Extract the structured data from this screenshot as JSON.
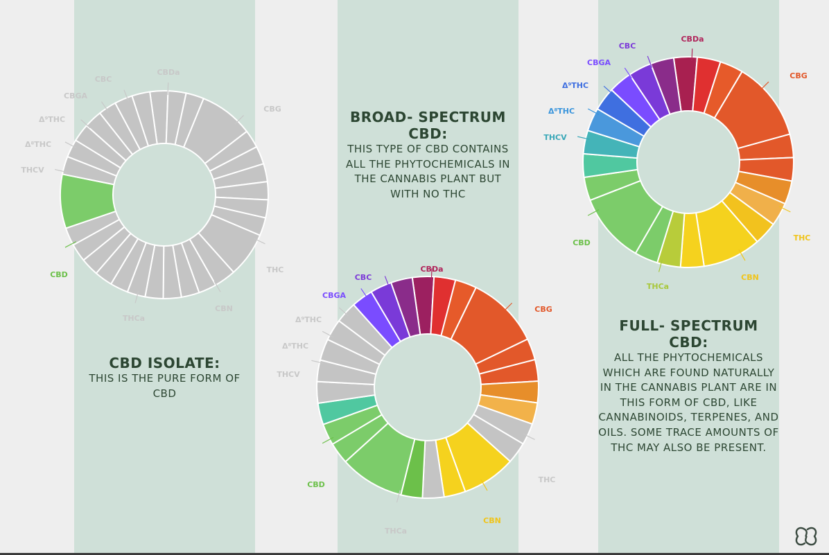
{
  "panels": [
    {
      "title": "CBD ISOLATE:",
      "description": "THIS IS THE PURE FORM OF CBD",
      "labels": {
        "CBDa": "#c8c8c8",
        "CBC": "#c8c8c8",
        "CBGA": "#c8c8c8",
        "d9THC": "#c8c8c8",
        "d8THC": "#c8c8c8",
        "THCV": "#c8c8c8",
        "CBD": "#6cc04a",
        "THCa": "#c8c8c8",
        "CBN": "#c8c8c8",
        "THC": "#c8c8c8",
        "CBG": "#c8c8c8"
      }
    },
    {
      "title": "BROAD- SPECTRUM CBD:",
      "description": "THIS TYPE OF CBD CONTAINS ALL THE PHYTOCHEMICALS IN THE CANNABIS PLANT BUT WITH NO THC",
      "labels": {
        "CBDa": "#b0245a",
        "CBC": "#7c3ad8",
        "CBGA": "#7a4cff",
        "d9THC": "#c8c8c8",
        "d8THC": "#c8c8c8",
        "THCV": "#c8c8c8",
        "CBD": "#6cc04a",
        "THCa": "#c8c8c8",
        "CBN": "#f0c41a",
        "THC": "#c8c8c8",
        "CBG": "#e2582a"
      }
    },
    {
      "title": "FULL- SPECTRUM CBD:",
      "description": "ALL THE PHYTOCHEMICALS WHICH ARE FOUND NATURALLY IN THE CANNABIS PLANT ARE IN THIS FORM OF CBD, LIKE CANNABINOIDS, TERPENES, AND OILS. SOME TRACE AMOUNTS OF THC MAY ALSO BE PRESENT.",
      "labels": {
        "CBDa": "#b0245a",
        "CBC": "#7c3ad8",
        "CBGA": "#7a4cff",
        "d9THC": "#3f6fe0",
        "d8THC": "#3a95dc",
        "THCV": "#3aa8b8",
        "CBD": "#6cc04a",
        "THCa": "#a8c83a",
        "CBN": "#f0c41a",
        "THC": "#f0c41a",
        "CBG": "#e2582a"
      }
    }
  ],
  "label_text": {
    "CBDa": "CBDa",
    "CBC": "CBC",
    "CBGA": "CBGA",
    "d9THC": "Δ⁹THC",
    "d8THC": "Δ⁸THC",
    "THCV": "THCV",
    "CBD": "CBD",
    "THCa": "THCa",
    "CBN": "CBN",
    "THC": "THC",
    "CBG": "CBG"
  },
  "segment_colors": [
    [
      "#c4c4c4",
      "#c4c4c4",
      "#c4c4c4",
      "#c4c4c4",
      "#c4c4c4",
      "#c4c4c4",
      "#c4c4c4",
      "#c4c4c4",
      "#c4c4c4",
      "#c4c4c4",
      "#c4c4c4",
      "#c4c4c4",
      "#c4c4c4",
      "#c4c4c4",
      "#c4c4c4",
      "#c4c4c4",
      "#c4c4c4",
      "#c4c4c4",
      "#c4c4c4",
      "#c4c4c4",
      "#c4c4c4",
      "#c4c4c4",
      "#7ccc6a",
      "#c4c4c4",
      "#c4c4c4",
      "#c4c4c4",
      "#c4c4c4",
      "#c4c4c4",
      "#c4c4c4",
      "#c4c4c4"
    ],
    [
      "#9c2060",
      "#e03030",
      "#e65a2a",
      "#e2582a",
      "#e2582a",
      "#e2582a",
      "#e78e2a",
      "#f2b24a",
      "#c4c4c4",
      "#c4c4c4",
      "#f5d21e",
      "#f5d21e",
      "#c4c4c4",
      "#6cc04a",
      "#7ccc6a",
      "#7ccc6a",
      "#7ccc6a",
      "#50c8a0",
      "#c4c4c4",
      "#c4c4c4",
      "#c4c4c4",
      "#c4c4c4",
      "#c4c4c4",
      "#7a4cff",
      "#7a3ad8",
      "#8a2c8a"
    ],
    [
      "#a82050",
      "#e03030",
      "#e65a2a",
      "#e2582a",
      "#e2582a",
      "#e2582a",
      "#e78e2a",
      "#f0b04a",
      "#f2c21e",
      "#f5d21e",
      "#f5d21e",
      "#b8cc3a",
      "#7ccc6a",
      "#7ccc6a",
      "#7ccc6a",
      "#50c8a0",
      "#44b4b8",
      "#4a98dc",
      "#3f6fe0",
      "#7a4cff",
      "#7a3ad8",
      "#8a2c8a"
    ]
  ],
  "segment_weights": [
    [
      1,
      1,
      1,
      3,
      1,
      1,
      1,
      1,
      1,
      1,
      2.5,
      1.2,
      1,
      1,
      1,
      1,
      1,
      1,
      1,
      1,
      1,
      1,
      3,
      1,
      1,
      1,
      1,
      1,
      1,
      1
    ],
    [
      1,
      1,
      1,
      3.4,
      1,
      1,
      1,
      1,
      1,
      1,
      2.5,
      1,
      1,
      1,
      3,
      1,
      1,
      1,
      1,
      1,
      1,
      1,
      1,
      1,
      1,
      1
    ],
    [
      1,
      1,
      1,
      3.4,
      1,
      1,
      1,
      1,
      1,
      2.5,
      1,
      1,
      1,
      3,
      1,
      1,
      1,
      1,
      1,
      1,
      1,
      1
    ]
  ],
  "logo": "brand-logo"
}
